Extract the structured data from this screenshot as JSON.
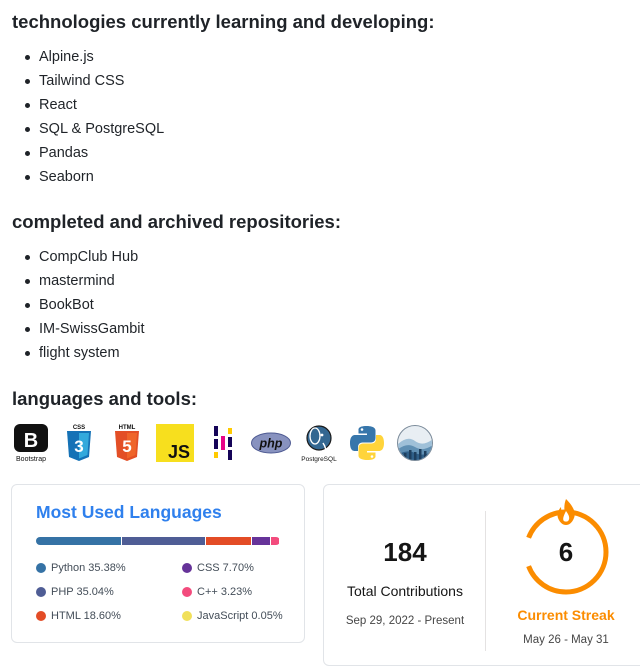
{
  "sections": {
    "learning": {
      "heading": "technologies currently learning and developing:",
      "items": [
        "Alpine.js",
        "Tailwind CSS",
        "React",
        "SQL & PostgreSQL",
        "Pandas",
        "Seaborn"
      ]
    },
    "archived": {
      "heading": "completed and archived repositories:",
      "items": [
        "CompClub Hub",
        "mastermind",
        "BookBot",
        "IM-SwissGambit",
        "flight system"
      ]
    },
    "tools": {
      "heading": "languages and tools:",
      "logos": [
        {
          "icon": "bootstrap-icon",
          "text": "B",
          "caption": "Bootstrap"
        },
        {
          "icon": "css3-icon",
          "text": "3",
          "caption": "CSS"
        },
        {
          "icon": "html5-icon",
          "text": "5",
          "caption": "HTML"
        },
        {
          "icon": "javascript-icon",
          "text": "JS"
        },
        {
          "icon": "pandas-icon"
        },
        {
          "icon": "php-icon",
          "text": "php"
        },
        {
          "icon": "postgresql-icon",
          "caption": "PostgreSQL"
        },
        {
          "icon": "python-icon"
        },
        {
          "icon": "seaborn-icon"
        }
      ]
    }
  },
  "languages_card": {
    "title": "Most Used Languages",
    "languages": [
      {
        "name": "Python",
        "percent": 35.38,
        "label": "Python 35.38%",
        "color": "#3572A5"
      },
      {
        "name": "PHP",
        "percent": 35.04,
        "label": "PHP 35.04%",
        "color": "#4F5D95"
      },
      {
        "name": "HTML",
        "percent": 18.6,
        "label": "HTML 18.60%",
        "color": "#e34c26"
      },
      {
        "name": "CSS",
        "percent": 7.7,
        "label": "CSS 7.70%",
        "color": "#663399"
      },
      {
        "name": "C++",
        "percent": 3.23,
        "label": "C++ 3.23%",
        "color": "#f34b7d"
      },
      {
        "name": "JavaScript",
        "percent": 0.05,
        "label": "JavaScript 0.05%",
        "color": "#f1e05a"
      }
    ]
  },
  "streak_card": {
    "total_contributions": "184",
    "total_label": "Total Contributions",
    "total_range": "Sep 29, 2022 - Present",
    "current_streak": "6",
    "current_label": "Current Streak",
    "current_range": "May 26 - May 31",
    "accent_color": "#fb8c00"
  }
}
